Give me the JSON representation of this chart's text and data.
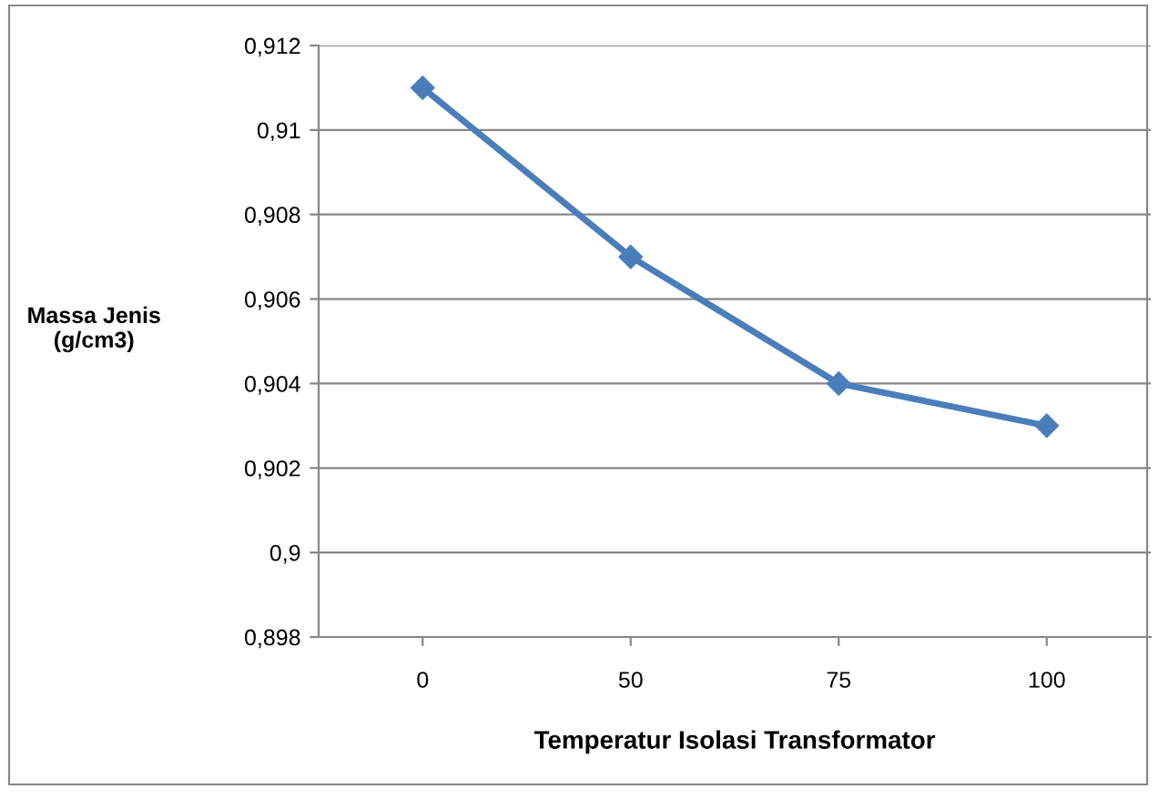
{
  "chart_data": {
    "type": "line",
    "xlabel": "Temperatur Isolasi Transformator",
    "ylabel": "Massa Jenis\n(g/cm3)",
    "categories": [
      "0",
      "50",
      "75",
      "100"
    ],
    "series": [
      {
        "color": "#4a7ebb",
        "values": [
          0.911,
          0.907,
          0.904,
          0.903
        ]
      }
    ],
    "ylim": [
      0.898,
      0.912
    ],
    "yticks": [
      {
        "value": 0.898,
        "label": "0,898"
      },
      {
        "value": 0.9,
        "label": "0,9"
      },
      {
        "value": 0.902,
        "label": "0,902"
      },
      {
        "value": 0.904,
        "label": "0,904"
      },
      {
        "value": 0.906,
        "label": "0,906"
      },
      {
        "value": 0.908,
        "label": "0,908"
      },
      {
        "value": 0.91,
        "label": "0,91"
      },
      {
        "value": 0.912,
        "label": "0,912"
      }
    ],
    "grid": "y",
    "legend": false,
    "marker": "diamond",
    "line_style": "solid"
  }
}
